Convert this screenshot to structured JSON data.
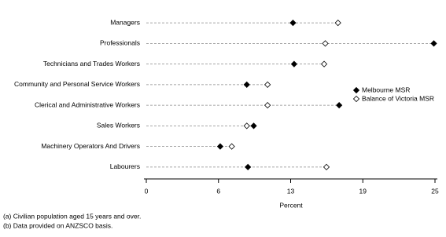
{
  "chart_data": {
    "type": "dot",
    "categories": [
      "Managers",
      "Professionals",
      "Technicians and Trades Workers",
      "Community and Personal Service Workers",
      "Clerical and Administrative Workers",
      "Sales Workers",
      "Machinery Operators And Drivers",
      "Labourers"
    ],
    "series": [
      {
        "name": "Melbourne MSR",
        "color": "#000000",
        "values": [
          12.7,
          24.9,
          12.8,
          8.7,
          16.7,
          9.3,
          6.4,
          8.8
        ]
      },
      {
        "name": "Balance of Victoria MSR",
        "color": "#ffffff",
        "values": [
          16.6,
          15.5,
          15.4,
          10.5,
          10.5,
          8.7,
          7.4,
          15.6
        ]
      }
    ],
    "xlabel": "Percent",
    "xlim": [
      0,
      25
    ],
    "xticks": [
      0,
      {
        "value": 6.25,
        "label": "6"
      },
      {
        "value": 12.5,
        "label": "13"
      },
      {
        "value": 18.75,
        "label": "19"
      },
      25
    ],
    "legend": "right",
    "footnotes": [
      "(a) Civilian population aged 15 years and over.",
      "(b) Data provided on ANZSCO basis."
    ]
  }
}
